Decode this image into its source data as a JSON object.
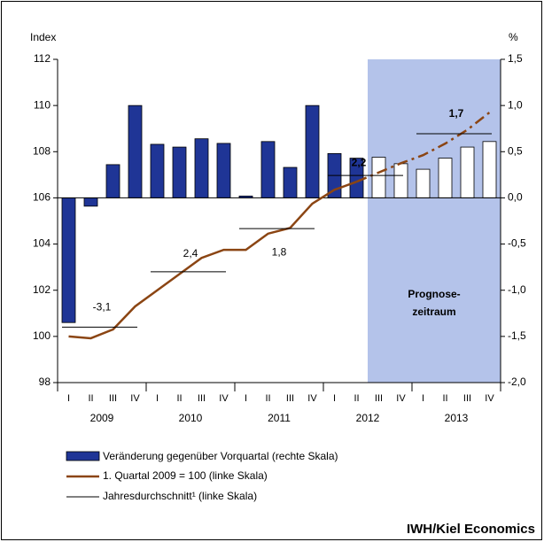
{
  "chart_data": {
    "type": "bar-line",
    "y_label": "Index",
    "y2_label": "%",
    "ylim": [
      98,
      112
    ],
    "yticks": [
      98,
      100,
      102,
      104,
      106,
      108,
      110,
      112
    ],
    "y2lim": [
      -2.0,
      1.5
    ],
    "y2ticks": [
      {
        "value": -2.0,
        "label": "-2,0"
      },
      {
        "value": -1.5,
        "label": "-1,5"
      },
      {
        "value": -1.0,
        "label": "-1,0"
      },
      {
        "value": -0.5,
        "label": "-0,5"
      },
      {
        "value": 0.0,
        "label": "0,0"
      },
      {
        "value": 0.5,
        "label": "0,5"
      },
      {
        "value": 1.0,
        "label": "1,0"
      },
      {
        "value": 1.5,
        "label": "1,5"
      }
    ],
    "categories": [
      "I",
      "II",
      "III",
      "IV",
      "I",
      "II",
      "III",
      "IV",
      "I",
      "II",
      "III",
      "IV",
      "I",
      "II",
      "III",
      "IV",
      "I",
      "II",
      "III",
      "IV"
    ],
    "years": [
      "2009",
      "2010",
      "2011",
      "2012",
      "2013"
    ],
    "forecast": {
      "labels": [
        "Prognose-",
        "zeitraum"
      ],
      "start_index": 14,
      "color": "#b4c3ea",
      "bar_color": "#ffffff"
    },
    "series": [
      {
        "name": "Veränderung gegenüber Vorquartal (rechte Skala)",
        "color": "#1f3596",
        "axis": "y2",
        "values": [
          -1.35,
          -0.09,
          0.36,
          1.0,
          0.58,
          0.55,
          0.64,
          0.59,
          0.02,
          0.61,
          0.33,
          1.0,
          0.48,
          0.43,
          0.44,
          0.37,
          0.31,
          0.43,
          0.55,
          0.61
        ]
      },
      {
        "name": "1. Quartal 2009 = 100 (linke Skala)",
        "color": "#8b4513",
        "values": [
          100.0,
          99.92,
          100.3,
          101.3,
          102.0,
          102.7,
          103.4,
          103.75,
          103.75,
          104.45,
          104.7,
          105.75,
          106.35,
          106.7,
          null,
          null,
          null,
          null,
          null,
          null
        ]
      },
      {
        "color": "#8b4513",
        "style": "dashed",
        "values": [
          null,
          null,
          null,
          null,
          null,
          null,
          null,
          null,
          null,
          null,
          null,
          null,
          null,
          106.7,
          107.1,
          107.5,
          107.85,
          108.35,
          108.95,
          109.7
        ]
      }
    ],
    "annual": {
      "name": "Jahresdurchschnitt¹ (linke Skala)",
      "values": [
        100.4,
        102.8,
        104.67,
        106.97,
        108.78
      ],
      "growth_labels": [
        "-3,1",
        "2,4",
        "1,8",
        "2,2",
        "1,7"
      ]
    },
    "source": "IWH/Kiel Economics"
  }
}
